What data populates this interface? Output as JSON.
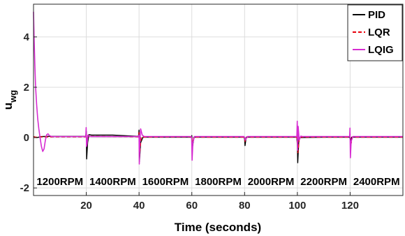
{
  "chart_data": {
    "type": "line",
    "title": "",
    "xlabel": "Time (seconds)",
    "ylabel": "u",
    "ylabel_sub": "wg",
    "xlim": [
      0,
      140
    ],
    "ylim": [
      -2.3,
      5.3
    ],
    "xticks": [
      20,
      40,
      60,
      80,
      100,
      120
    ],
    "yticks": [
      -2,
      0,
      2,
      4
    ],
    "grid": true,
    "legend_position": "top-right",
    "series": [
      {
        "name": "PID",
        "color": "#000000",
        "dash": "solid",
        "x": [
          0,
          0.5,
          1.2,
          2,
          3,
          5,
          10,
          19.8,
          20,
          20.15,
          20.5,
          21,
          22,
          30,
          39.8,
          40,
          40.15,
          40.6,
          41.5,
          50,
          59.8,
          60,
          60.15,
          60.8,
          70,
          79.8,
          80,
          80.15,
          80.6,
          90,
          99.8,
          100,
          100.15,
          100.6,
          110,
          119.8,
          120,
          120.15,
          120.6,
          130,
          140
        ],
        "y": [
          0.05,
          0.02,
          0.0,
          0.02,
          0.04,
          0.05,
          0.05,
          0.05,
          0.25,
          -0.85,
          -0.2,
          0.12,
          0.1,
          0.1,
          0.05,
          0.3,
          -0.95,
          -0.2,
          0.02,
          0.02,
          0.02,
          0.08,
          -0.45,
          0.02,
          0.02,
          0.02,
          -0.05,
          -0.32,
          0.02,
          0.02,
          0.02,
          -0.3,
          -1.0,
          0.0,
          0.02,
          0.02,
          -0.05,
          -0.15,
          0.02,
          0.02,
          0.02
        ]
      },
      {
        "name": "LQR",
        "color": "#e8000b",
        "dash": "dashed",
        "x": [
          0,
          1,
          2,
          3,
          5,
          10,
          19.8,
          20,
          20.2,
          20.6,
          22,
          39.8,
          40,
          40.2,
          40.8,
          60,
          60.2,
          60.8,
          80,
          80.2,
          80.8,
          99.8,
          100,
          100.2,
          100.8,
          119.8,
          120,
          120.2,
          120.8,
          140
        ],
        "y": [
          0.03,
          0.02,
          0.02,
          0.03,
          0.03,
          0.03,
          0.03,
          0.15,
          -0.3,
          0.05,
          0.05,
          0.03,
          0.2,
          -0.7,
          0.02,
          0.03,
          -0.3,
          0.02,
          0.02,
          -0.15,
          0.02,
          0.02,
          -0.2,
          -0.6,
          0.02,
          0.02,
          0.15,
          -0.35,
          0.02,
          0.02
        ]
      },
      {
        "name": "LQIG",
        "color": "#d62cd1",
        "dash": "solid",
        "x": [
          0,
          0.2,
          0.5,
          0.8,
          1.2,
          1.6,
          2,
          2.5,
          3,
          3.5,
          4,
          4.5,
          5,
          5.5,
          6,
          7,
          8,
          10,
          15,
          19.8,
          19.95,
          20.1,
          20.3,
          20.6,
          21.2,
          22,
          30,
          39.8,
          40,
          40.1,
          40.3,
          40.6,
          41.2,
          42,
          50,
          59.8,
          59.95,
          60.1,
          60.4,
          61,
          70,
          79.8,
          80,
          80.3,
          81,
          90,
          99.8,
          99.95,
          100.1,
          100.3,
          100.7,
          101.3,
          102,
          110,
          119.8,
          119.95,
          120.1,
          120.4,
          121,
          130,
          140
        ],
        "y": [
          5.0,
          4.0,
          2.9,
          2.0,
          1.3,
          0.75,
          0.35,
          0.0,
          -0.35,
          -0.55,
          -0.45,
          -0.1,
          0.12,
          0.15,
          0.08,
          0.04,
          0.04,
          0.04,
          0.04,
          0.04,
          0.4,
          -0.35,
          -0.25,
          0.1,
          0.05,
          0.04,
          0.04,
          0.04,
          0.1,
          -1.05,
          -0.2,
          0.35,
          0.1,
          0.04,
          0.04,
          0.04,
          -0.05,
          -0.9,
          -0.2,
          0.04,
          0.04,
          0.04,
          0.0,
          -0.1,
          0.04,
          0.04,
          0.04,
          0.65,
          -0.5,
          0.45,
          -0.1,
          0.06,
          0.04,
          0.04,
          0.04,
          0.38,
          -0.8,
          -0.15,
          0.04,
          0.04,
          0.04
        ]
      }
    ],
    "annotations": [
      {
        "text": "1200RPM",
        "x": 10,
        "y": -1.75
      },
      {
        "text": "1400RPM",
        "x": 30,
        "y": -1.75
      },
      {
        "text": "1600RPM",
        "x": 50,
        "y": -1.75
      },
      {
        "text": "1800RPM",
        "x": 70,
        "y": -1.75
      },
      {
        "text": "2000RPM",
        "x": 90,
        "y": -1.75
      },
      {
        "text": "2200RPM",
        "x": 110,
        "y": -1.75
      },
      {
        "text": "2400RPM",
        "x": 130,
        "y": -1.75
      }
    ]
  }
}
